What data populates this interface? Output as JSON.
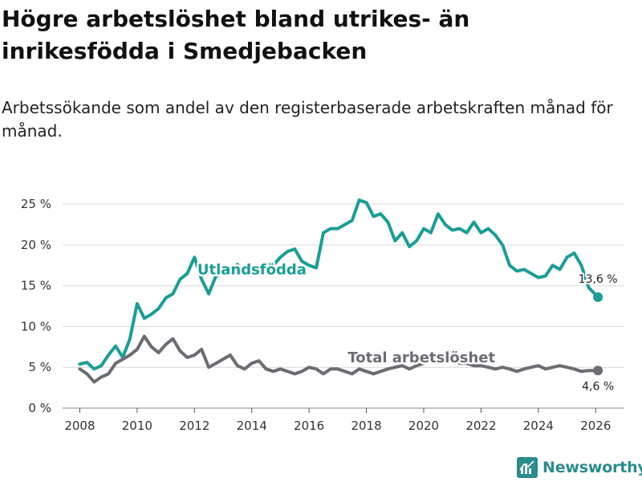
{
  "title": "Högre arbetslöshet bland utrikes- än inrikesfödda i Smedjebacken",
  "subtitle": "Arbetssökande som andel av den registerbaserade arbetskraften månad för månad.",
  "brand": {
    "name": "Newsworthy",
    "icon": "bar-chart-logo-icon",
    "color": "#2a8c8c"
  },
  "chart_data": {
    "type": "line",
    "xlabel": "",
    "ylabel": "",
    "xlim": [
      2007.4,
      2027.0
    ],
    "ylim": [
      0,
      26
    ],
    "grid": true,
    "legend": "inline labels",
    "x_ticks": [
      2008,
      2010,
      2012,
      2014,
      2016,
      2018,
      2020,
      2022,
      2024,
      2026
    ],
    "x_tick_labels": [
      "2008",
      "2010",
      "2012",
      "2014",
      "2016",
      "2018",
      "2020",
      "2022",
      "2024",
      "2026"
    ],
    "y_ticks": [
      0,
      5,
      10,
      15,
      20,
      25
    ],
    "y_tick_labels": [
      "0 %",
      "5 %",
      "10 %",
      "15 %",
      "20 %",
      "25 %"
    ],
    "series": [
      {
        "name": "Utlandsfödda",
        "color": "#1a9e95",
        "end_label": "13,6 %",
        "x": [
          2008.0,
          2008.25,
          2008.5,
          2008.75,
          2009.0,
          2009.25,
          2009.5,
          2009.75,
          2010.0,
          2010.25,
          2010.5,
          2010.75,
          2011.0,
          2011.25,
          2011.5,
          2011.75,
          2012.0,
          2012.25,
          2012.5,
          2012.75,
          2013.0,
          2013.25,
          2013.5,
          2013.75,
          2014.0,
          2014.25,
          2014.5,
          2014.75,
          2015.0,
          2015.25,
          2015.5,
          2015.75,
          2016.0,
          2016.25,
          2016.5,
          2016.75,
          2017.0,
          2017.25,
          2017.5,
          2017.75,
          2018.0,
          2018.25,
          2018.5,
          2018.75,
          2019.0,
          2019.25,
          2019.5,
          2019.75,
          2020.0,
          2020.25,
          2020.5,
          2020.75,
          2021.0,
          2021.25,
          2021.5,
          2021.75,
          2022.0,
          2022.25,
          2022.5,
          2022.75,
          2023.0,
          2023.25,
          2023.5,
          2023.75,
          2024.0,
          2024.25,
          2024.5,
          2024.75,
          2025.0,
          2025.25,
          2025.5,
          2025.75,
          2026.08
        ],
        "values": [
          5.4,
          5.6,
          4.8,
          5.2,
          6.5,
          7.6,
          6.2,
          8.5,
          12.8,
          11.0,
          11.5,
          12.2,
          13.5,
          14.0,
          15.8,
          16.5,
          18.5,
          15.8,
          14.0,
          16.2,
          16.5,
          16.8,
          17.6,
          16.5,
          17.0,
          16.5,
          16.8,
          17.5,
          18.5,
          19.2,
          19.5,
          18.0,
          17.5,
          17.2,
          21.5,
          22.0,
          22.0,
          22.5,
          23.0,
          25.5,
          25.2,
          23.5,
          23.8,
          22.8,
          20.5,
          21.5,
          19.8,
          20.5,
          22.0,
          21.5,
          23.8,
          22.5,
          21.8,
          22.0,
          21.5,
          22.8,
          21.5,
          22.0,
          21.2,
          20.0,
          17.5,
          16.8,
          17.0,
          16.5,
          16.0,
          16.2,
          17.5,
          17.0,
          18.5,
          19.0,
          17.5,
          14.8,
          13.6
        ]
      },
      {
        "name": "Total arbetslöshet",
        "color": "#6c6c73",
        "end_label": "4,6 %",
        "x": [
          2008.0,
          2008.25,
          2008.5,
          2008.75,
          2009.0,
          2009.25,
          2009.5,
          2009.75,
          2010.0,
          2010.25,
          2010.5,
          2010.75,
          2011.0,
          2011.25,
          2011.5,
          2011.75,
          2012.0,
          2012.25,
          2012.5,
          2012.75,
          2013.0,
          2013.25,
          2013.5,
          2013.75,
          2014.0,
          2014.25,
          2014.5,
          2014.75,
          2015.0,
          2015.25,
          2015.5,
          2015.75,
          2016.0,
          2016.25,
          2016.5,
          2016.75,
          2017.0,
          2017.25,
          2017.5,
          2017.75,
          2018.0,
          2018.25,
          2018.5,
          2018.75,
          2019.0,
          2019.25,
          2019.5,
          2019.75,
          2020.0,
          2020.25,
          2020.5,
          2020.75,
          2021.0,
          2021.25,
          2021.5,
          2021.75,
          2022.0,
          2022.25,
          2022.5,
          2022.75,
          2023.0,
          2023.25,
          2023.5,
          2023.75,
          2024.0,
          2024.25,
          2024.5,
          2024.75,
          2025.0,
          2025.25,
          2025.5,
          2025.75,
          2026.08
        ],
        "values": [
          4.8,
          4.2,
          3.2,
          3.8,
          4.2,
          5.5,
          6.0,
          6.5,
          7.2,
          8.8,
          7.5,
          6.8,
          7.8,
          8.5,
          7.0,
          6.2,
          6.5,
          7.2,
          5.0,
          5.5,
          6.0,
          6.5,
          5.2,
          4.8,
          5.5,
          5.8,
          4.8,
          4.5,
          4.8,
          4.5,
          4.2,
          4.5,
          5.0,
          4.8,
          4.2,
          4.8,
          4.8,
          4.5,
          4.2,
          4.8,
          4.5,
          4.2,
          4.5,
          4.8,
          5.0,
          5.2,
          4.8,
          5.2,
          5.5,
          6.0,
          6.2,
          6.5,
          6.0,
          5.5,
          5.5,
          5.2,
          5.2,
          5.0,
          4.8,
          5.0,
          4.8,
          4.5,
          4.8,
          5.0,
          5.2,
          4.8,
          5.0,
          5.2,
          5.0,
          4.8,
          4.5,
          4.6,
          4.6
        ]
      }
    ]
  }
}
